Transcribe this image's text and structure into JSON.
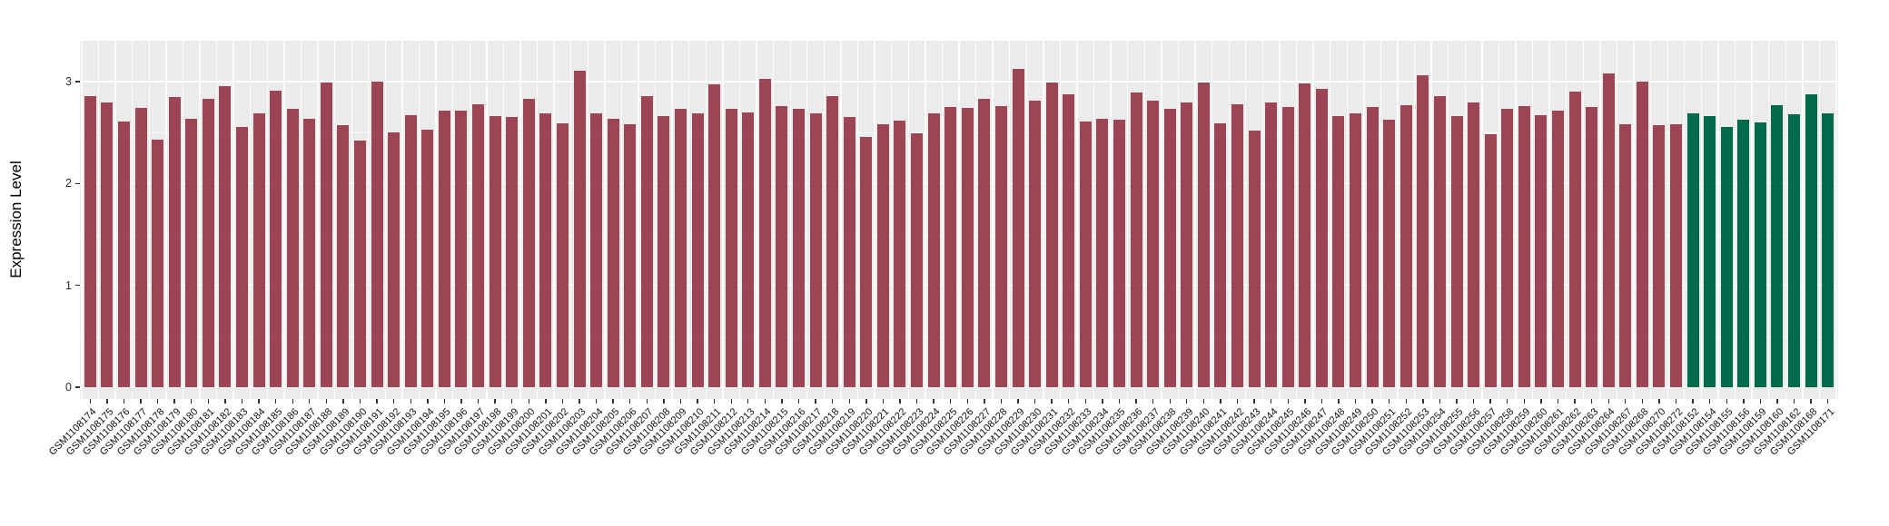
{
  "chart_data": {
    "type": "bar",
    "title": "",
    "xlabel": "",
    "ylabel": "Expression Level",
    "ylim": [
      0,
      3.4
    ],
    "yticks": [
      0,
      1,
      2,
      3
    ],
    "yminor": [
      0.5,
      1.5,
      2.5
    ],
    "grid": "on",
    "legend": "none",
    "panel_background": "#ebebeb",
    "gridline_color": "#ffffff",
    "colors": {
      "maroon": "#9d4455",
      "green": "#006b4a"
    },
    "bars": [
      {
        "label": "GSM1108174",
        "value": 2.86,
        "group": "maroon"
      },
      {
        "label": "GSM1108175",
        "value": 2.8,
        "group": "maroon"
      },
      {
        "label": "GSM1108176",
        "value": 2.61,
        "group": "maroon"
      },
      {
        "label": "GSM1108177",
        "value": 2.74,
        "group": "maroon"
      },
      {
        "label": "GSM1108178",
        "value": 2.43,
        "group": "maroon"
      },
      {
        "label": "GSM1108179",
        "value": 2.85,
        "group": "maroon"
      },
      {
        "label": "GSM1108180",
        "value": 2.64,
        "group": "maroon"
      },
      {
        "label": "GSM1108181",
        "value": 2.83,
        "group": "maroon"
      },
      {
        "label": "GSM1108182",
        "value": 2.96,
        "group": "maroon"
      },
      {
        "label": "GSM1108183",
        "value": 2.56,
        "group": "maroon"
      },
      {
        "label": "GSM1108184",
        "value": 2.69,
        "group": "maroon"
      },
      {
        "label": "GSM1108185",
        "value": 2.91,
        "group": "maroon"
      },
      {
        "label": "GSM1108186",
        "value": 2.73,
        "group": "maroon"
      },
      {
        "label": "GSM1108187",
        "value": 2.64,
        "group": "maroon"
      },
      {
        "label": "GSM1108188",
        "value": 2.99,
        "group": "maroon"
      },
      {
        "label": "GSM1108189",
        "value": 2.57,
        "group": "maroon"
      },
      {
        "label": "GSM1108190",
        "value": 2.42,
        "group": "maroon"
      },
      {
        "label": "GSM1108191",
        "value": 3.0,
        "group": "maroon"
      },
      {
        "label": "GSM1108192",
        "value": 2.5,
        "group": "maroon"
      },
      {
        "label": "GSM1108193",
        "value": 2.67,
        "group": "maroon"
      },
      {
        "label": "GSM1108194",
        "value": 2.53,
        "group": "maroon"
      },
      {
        "label": "GSM1108195",
        "value": 2.72,
        "group": "maroon"
      },
      {
        "label": "GSM1108196",
        "value": 2.72,
        "group": "maroon"
      },
      {
        "label": "GSM1108197",
        "value": 2.78,
        "group": "maroon"
      },
      {
        "label": "GSM1108198",
        "value": 2.66,
        "group": "maroon"
      },
      {
        "label": "GSM1108199",
        "value": 2.65,
        "group": "maroon"
      },
      {
        "label": "GSM1108200",
        "value": 2.83,
        "group": "maroon"
      },
      {
        "label": "GSM1108201",
        "value": 2.69,
        "group": "maroon"
      },
      {
        "label": "GSM1108202",
        "value": 2.59,
        "group": "maroon"
      },
      {
        "label": "GSM1108203",
        "value": 3.11,
        "group": "maroon"
      },
      {
        "label": "GSM1108204",
        "value": 2.69,
        "group": "maroon"
      },
      {
        "label": "GSM1108205",
        "value": 2.64,
        "group": "maroon"
      },
      {
        "label": "GSM1108206",
        "value": 2.58,
        "group": "maroon"
      },
      {
        "label": "GSM1108207",
        "value": 2.86,
        "group": "maroon"
      },
      {
        "label": "GSM1108208",
        "value": 2.66,
        "group": "maroon"
      },
      {
        "label": "GSM1108209",
        "value": 2.73,
        "group": "maroon"
      },
      {
        "label": "GSM1108210",
        "value": 2.69,
        "group": "maroon"
      },
      {
        "label": "GSM1108211",
        "value": 2.97,
        "group": "maroon"
      },
      {
        "label": "GSM1108212",
        "value": 2.73,
        "group": "maroon"
      },
      {
        "label": "GSM1108213",
        "value": 2.7,
        "group": "maroon"
      },
      {
        "label": "GSM1108214",
        "value": 3.03,
        "group": "maroon"
      },
      {
        "label": "GSM1108215",
        "value": 2.76,
        "group": "maroon"
      },
      {
        "label": "GSM1108216",
        "value": 2.73,
        "group": "maroon"
      },
      {
        "label": "GSM1108217",
        "value": 2.69,
        "group": "maroon"
      },
      {
        "label": "GSM1108218",
        "value": 2.86,
        "group": "maroon"
      },
      {
        "label": "GSM1108219",
        "value": 2.65,
        "group": "maroon"
      },
      {
        "label": "GSM1108220",
        "value": 2.46,
        "group": "maroon"
      },
      {
        "label": "GSM1108221",
        "value": 2.58,
        "group": "maroon"
      },
      {
        "label": "GSM1108222",
        "value": 2.62,
        "group": "maroon"
      },
      {
        "label": "GSM1108223",
        "value": 2.49,
        "group": "maroon"
      },
      {
        "label": "GSM1108224",
        "value": 2.69,
        "group": "maroon"
      },
      {
        "label": "GSM1108225",
        "value": 2.75,
        "group": "maroon"
      },
      {
        "label": "GSM1108226",
        "value": 2.74,
        "group": "maroon"
      },
      {
        "label": "GSM1108227",
        "value": 2.83,
        "group": "maroon"
      },
      {
        "label": "GSM1108228",
        "value": 2.76,
        "group": "maroon"
      },
      {
        "label": "GSM1108229",
        "value": 3.13,
        "group": "maroon"
      },
      {
        "label": "GSM1108230",
        "value": 2.81,
        "group": "maroon"
      },
      {
        "label": "GSM1108231",
        "value": 2.99,
        "group": "maroon"
      },
      {
        "label": "GSM1108232",
        "value": 2.88,
        "group": "maroon"
      },
      {
        "label": "GSM1108233",
        "value": 2.61,
        "group": "maroon"
      },
      {
        "label": "GSM1108234",
        "value": 2.64,
        "group": "maroon"
      },
      {
        "label": "GSM1108235",
        "value": 2.63,
        "group": "maroon"
      },
      {
        "label": "GSM1108236",
        "value": 2.89,
        "group": "maroon"
      },
      {
        "label": "GSM1108237",
        "value": 2.81,
        "group": "maroon"
      },
      {
        "label": "GSM1108238",
        "value": 2.73,
        "group": "maroon"
      },
      {
        "label": "GSM1108239",
        "value": 2.8,
        "group": "maroon"
      },
      {
        "label": "GSM1108240",
        "value": 2.99,
        "group": "maroon"
      },
      {
        "label": "GSM1108241",
        "value": 2.59,
        "group": "maroon"
      },
      {
        "label": "GSM1108242",
        "value": 2.78,
        "group": "maroon"
      },
      {
        "label": "GSM1108243",
        "value": 2.52,
        "group": "maroon"
      },
      {
        "label": "GSM1108244",
        "value": 2.8,
        "group": "maroon"
      },
      {
        "label": "GSM1108245",
        "value": 2.75,
        "group": "maroon"
      },
      {
        "label": "GSM1108246",
        "value": 2.98,
        "group": "maroon"
      },
      {
        "label": "GSM1108247",
        "value": 2.93,
        "group": "maroon"
      },
      {
        "label": "GSM1108248",
        "value": 2.66,
        "group": "maroon"
      },
      {
        "label": "GSM1108249",
        "value": 2.69,
        "group": "maroon"
      },
      {
        "label": "GSM1108250",
        "value": 2.75,
        "group": "maroon"
      },
      {
        "label": "GSM1108251",
        "value": 2.63,
        "group": "maroon"
      },
      {
        "label": "GSM1108252",
        "value": 2.77,
        "group": "maroon"
      },
      {
        "label": "GSM1108253",
        "value": 3.06,
        "group": "maroon"
      },
      {
        "label": "GSM1108254",
        "value": 2.86,
        "group": "maroon"
      },
      {
        "label": "GSM1108255",
        "value": 2.66,
        "group": "maroon"
      },
      {
        "label": "GSM1108256",
        "value": 2.8,
        "group": "maroon"
      },
      {
        "label": "GSM1108257",
        "value": 2.48,
        "group": "maroon"
      },
      {
        "label": "GSM1108258",
        "value": 2.73,
        "group": "maroon"
      },
      {
        "label": "GSM1108259",
        "value": 2.76,
        "group": "maroon"
      },
      {
        "label": "GSM1108260",
        "value": 2.67,
        "group": "maroon"
      },
      {
        "label": "GSM1108261",
        "value": 2.72,
        "group": "maroon"
      },
      {
        "label": "GSM1108262",
        "value": 2.9,
        "group": "maroon"
      },
      {
        "label": "GSM1108263",
        "value": 2.75,
        "group": "maroon"
      },
      {
        "label": "GSM1108264",
        "value": 3.08,
        "group": "maroon"
      },
      {
        "label": "GSM1108267",
        "value": 2.58,
        "group": "maroon"
      },
      {
        "label": "GSM1108268",
        "value": 3.0,
        "group": "maroon"
      },
      {
        "label": "GSM1108270",
        "value": 2.57,
        "group": "maroon"
      },
      {
        "label": "GSM1108272",
        "value": 2.58,
        "group": "maroon"
      },
      {
        "label": "GSM1108152",
        "value": 2.69,
        "group": "green"
      },
      {
        "label": "GSM1108154",
        "value": 2.66,
        "group": "green"
      },
      {
        "label": "GSM1108155",
        "value": 2.56,
        "group": "green"
      },
      {
        "label": "GSM1108156",
        "value": 2.63,
        "group": "green"
      },
      {
        "label": "GSM1108159",
        "value": 2.6,
        "group": "green"
      },
      {
        "label": "GSM1108160",
        "value": 2.77,
        "group": "green"
      },
      {
        "label": "GSM1108162",
        "value": 2.68,
        "group": "green"
      },
      {
        "label": "GSM1108168",
        "value": 2.88,
        "group": "green"
      },
      {
        "label": "GSM1108171",
        "value": 2.69,
        "group": "green"
      }
    ]
  }
}
